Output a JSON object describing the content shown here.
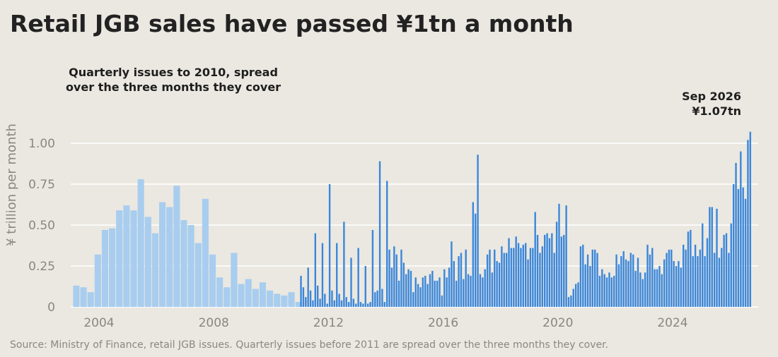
{
  "title": "Retail JGB sales have passed ¥1tn a month",
  "annotations": {
    "quarterly_line1": "Quarterly issues to 2010, spread",
    "quarterly_line2": "over the three months they cover",
    "latest_date": "Sep 2026",
    "latest_value": "¥1.07tn"
  },
  "source": "Source: Ministry of Finance, retail JGB issues. Quarterly issues before 2011 are spread over the three months they cover.",
  "colors": {
    "background": "#ebe8e1",
    "quarterly": "#a8cdef",
    "monthly": "#3a86d9",
    "grid": "#ffffff"
  },
  "chart_data": {
    "type": "bar",
    "ylabel": "¥ trillion per month",
    "ylim": [
      0,
      1.1
    ],
    "yticks": [
      0,
      0.25,
      0.5,
      0.75,
      1.0
    ],
    "ytick_labels": [
      "0",
      "0.25",
      "0.50",
      "0.75",
      "1.00"
    ],
    "xticks": [
      "2004",
      "2008",
      "2012",
      "2016",
      "2020",
      "2024"
    ],
    "grid": true,
    "series": [
      {
        "kind": "quarterly",
        "start": "2003-02",
        "period_months": 3,
        "values": [
          0.13,
          0.12,
          0.09,
          0.32,
          0.47,
          0.48,
          0.59,
          0.62,
          0.59,
          0.78,
          0.55,
          0.45,
          0.64,
          0.61,
          0.74,
          0.53,
          0.5,
          0.39,
          0.66,
          0.32,
          0.18,
          0.12,
          0.33,
          0.14,
          0.17,
          0.11,
          0.15,
          0.1,
          0.08,
          0.07,
          0.09,
          0.03
        ]
      },
      {
        "kind": "monthly",
        "start": "2011-01",
        "values": [
          0.19,
          0.12,
          0.06,
          0.24,
          0.1,
          0.04,
          0.45,
          0.13,
          0.05,
          0.39,
          0.08,
          0.02,
          0.75,
          0.1,
          0.04,
          0.39,
          0.08,
          0.04,
          0.52,
          0.06,
          0.03,
          0.3,
          0.05,
          0.02,
          0.36,
          0.03,
          0.02,
          0.25,
          0.02,
          0.03,
          0.47,
          0.09,
          0.1,
          0.89,
          0.11,
          0.03,
          0.77,
          0.35,
          0.24,
          0.37,
          0.32,
          0.16,
          0.35,
          0.27,
          0.2,
          0.23,
          0.22,
          0.09,
          0.18,
          0.14,
          0.12,
          0.18,
          0.19,
          0.14,
          0.2,
          0.22,
          0.16,
          0.16,
          0.18,
          0.07,
          0.23,
          0.18,
          0.24,
          0.4,
          0.28,
          0.16,
          0.31,
          0.33,
          0.17,
          0.35,
          0.2,
          0.19,
          0.64,
          0.57,
          0.93,
          0.2,
          0.18,
          0.23,
          0.32,
          0.35,
          0.21,
          0.35,
          0.28,
          0.27,
          0.37,
          0.33,
          0.33,
          0.42,
          0.36,
          0.36,
          0.43,
          0.39,
          0.36,
          0.38,
          0.39,
          0.29,
          0.36,
          0.36,
          0.58,
          0.44,
          0.33,
          0.37,
          0.44,
          0.45,
          0.42,
          0.45,
          0.33,
          0.52,
          0.63,
          0.43,
          0.44,
          0.62,
          0.06,
          0.07,
          0.11,
          0.14,
          0.15,
          0.37,
          0.38,
          0.26,
          0.32,
          0.25,
          0.35,
          0.35,
          0.33,
          0.19,
          0.23,
          0.2,
          0.18,
          0.21,
          0.18,
          0.19,
          0.32,
          0.26,
          0.31,
          0.34,
          0.29,
          0.28,
          0.33,
          0.32,
          0.22,
          0.3,
          0.21,
          0.17,
          0.21,
          0.38,
          0.32,
          0.36,
          0.23,
          0.23,
          0.25,
          0.2,
          0.29,
          0.33,
          0.35,
          0.35,
          0.28,
          0.25,
          0.28,
          0.24,
          0.38,
          0.35,
          0.46,
          0.47,
          0.31,
          0.38,
          0.31,
          0.35,
          0.51,
          0.31,
          0.42,
          0.61,
          0.61,
          0.33,
          0.6,
          0.3,
          0.36,
          0.44,
          0.45,
          0.33,
          0.51,
          0.75,
          0.88,
          0.72,
          0.95,
          0.73,
          0.66,
          1.02,
          1.07
        ]
      }
    ]
  }
}
